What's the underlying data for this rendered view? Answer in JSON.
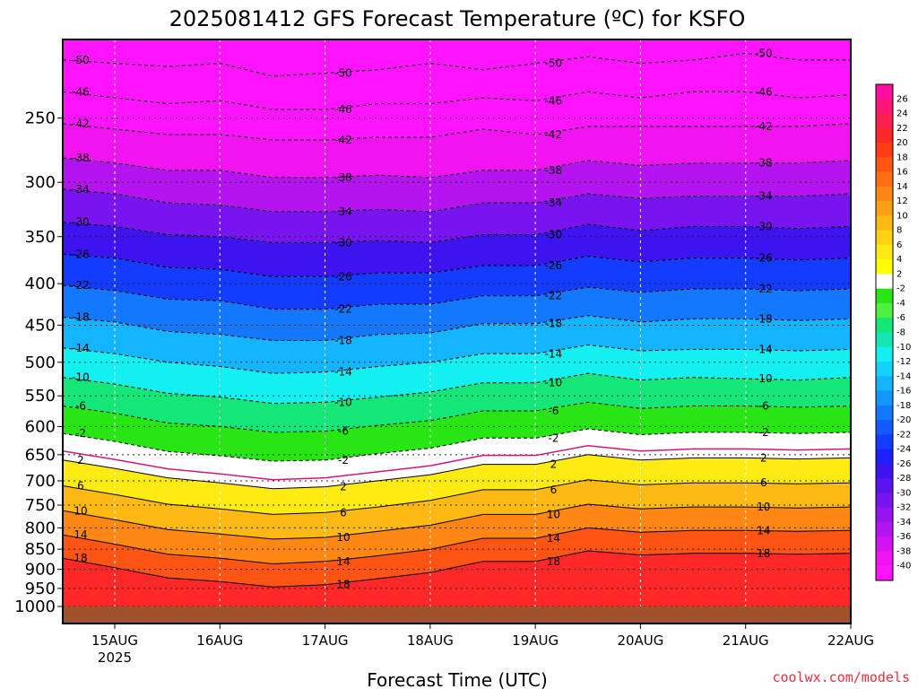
{
  "chart_data": {
    "type": "heatmap",
    "title": "2025081412 GFS Forecast Temperature (ºC) for KSFO",
    "xlabel": "Forecast Time (UTC)",
    "ylabel": "",
    "x_ticks": [
      "15AUG",
      "16AUG",
      "17AUG",
      "18AUG",
      "19AUG",
      "20AUG",
      "21AUG",
      "22AUG"
    ],
    "x_tick_sublabel": "2025",
    "x_range": [
      "2025-08-14T12Z",
      "2025-08-22T00Z"
    ],
    "y_ticks": [
      250,
      300,
      350,
      400,
      450,
      500,
      550,
      600,
      650,
      700,
      750,
      800,
      850,
      900,
      950,
      1000
    ],
    "ylim_hpa": [
      1000,
      200
    ],
    "y_scale": "log-pressure",
    "grid": true,
    "colorbar": {
      "labels": [
        26,
        24,
        22,
        20,
        18,
        16,
        14,
        12,
        10,
        8,
        6,
        4,
        2,
        -2,
        -4,
        -6,
        -8,
        -10,
        -12,
        -14,
        -16,
        -18,
        -20,
        -22,
        -24,
        -26,
        -28,
        -30,
        -32,
        -34,
        -36,
        -38,
        -40
      ],
      "colors": [
        "#ff0ca0",
        "#ff1478",
        "#ff1e50",
        "#ff2828",
        "#ff3c14",
        "#ff5514",
        "#ff6e14",
        "#ff8714",
        "#ffa014",
        "#ffb914",
        "#ffd214",
        "#ffeb14",
        "#ffff00",
        "#ffffff",
        "#28e614",
        "#50f03c",
        "#14e678",
        "#14e6b4",
        "#14f0f0",
        "#14d2ff",
        "#14b4ff",
        "#1496ff",
        "#1478ff",
        "#145aff",
        "#143cff",
        "#1e1eff",
        "#3c14f0",
        "#5a14f0",
        "#7814f0",
        "#9614f0",
        "#b414f0",
        "#d214f0",
        "#f014f0",
        "#ff14ff"
      ]
    },
    "isotherms": [
      {
        "label": "-50",
        "values": [
          -50,
          -50,
          -49,
          -50,
          -50,
          -50,
          -49,
          -50,
          -49,
          -49,
          -50,
          -49,
          -50,
          -50,
          -50,
          -50
        ]
      },
      {
        "label": "-46",
        "values": [
          -46,
          -46,
          -45,
          -46,
          -46,
          -46,
          -46,
          -46,
          -46,
          -46,
          -46,
          -45,
          -46,
          -46,
          -46,
          -46
        ]
      },
      {
        "label": "-42",
        "values": [
          -42,
          -42,
          -42,
          -42,
          -42,
          -42,
          -42,
          -42,
          -42,
          -42,
          -42,
          -42,
          -42,
          -42,
          -42,
          -42
        ]
      },
      {
        "label": "-38",
        "values": [
          -38,
          -38,
          -38,
          -38,
          -38,
          -38,
          -38,
          -38,
          -38,
          -38,
          -38,
          -38,
          -38,
          -38,
          -38,
          -38
        ]
      },
      {
        "label": "-34",
        "values": [
          -34,
          -34,
          -34,
          -34,
          -34,
          -34,
          -34,
          -34,
          -34,
          -34,
          -34,
          -34,
          -34,
          -34,
          -34,
          -34
        ]
      },
      {
        "label": "-30",
        "values": [
          -30,
          -30,
          -30,
          -30,
          -30,
          -30,
          -30,
          -30,
          -30,
          -30,
          -30,
          -30,
          -30,
          -30,
          -30,
          -30
        ]
      },
      {
        "label": "-26",
        "values": [
          -26,
          -26,
          -26,
          -26,
          -26,
          -26,
          -26,
          -26,
          -26,
          -26,
          -26,
          -26,
          -26,
          -26,
          -26,
          -26
        ]
      },
      {
        "label": "-22",
        "values": [
          -22,
          -22,
          -22,
          -22,
          -22,
          -22,
          -22,
          -22,
          -22,
          -22,
          -22,
          -22,
          -22,
          -22,
          -22,
          -22
        ]
      },
      {
        "label": "-18",
        "values": [
          -18,
          -18,
          -18,
          -18,
          -18,
          -18,
          -18,
          -18,
          -18,
          -18,
          -18,
          -18,
          -18,
          -18,
          -18,
          -18
        ]
      },
      {
        "label": "-14",
        "values": [
          -14,
          -14,
          -14,
          -14,
          -14,
          -14,
          -14,
          -14,
          -14,
          -14,
          -14,
          -14,
          -14,
          -14,
          -14,
          -14
        ]
      },
      {
        "label": "-10",
        "values": [
          -10,
          -10,
          -10,
          -10,
          -10,
          -10,
          -10,
          -10,
          -10,
          -10,
          -10,
          -10,
          -10,
          -10,
          -10,
          -10
        ]
      },
      {
        "label": "-6",
        "values": [
          -6,
          -6,
          -6,
          -6,
          -6,
          -6,
          -6,
          -6,
          -6,
          -6,
          -6,
          -6,
          -6,
          -6,
          -6,
          -6
        ]
      },
      {
        "label": "-2",
        "values": [
          -2,
          -2,
          -2,
          -2,
          -2,
          -2,
          -2,
          -2,
          -2,
          -2,
          -2,
          -2,
          -2,
          -2,
          -2,
          -2
        ]
      },
      {
        "label": "2",
        "values": [
          2,
          2,
          2,
          2,
          2,
          2,
          2,
          2,
          2,
          2,
          2,
          2,
          2,
          2,
          2,
          2
        ]
      },
      {
        "label": "6",
        "values": [
          6,
          6,
          6,
          6,
          6,
          6,
          6,
          6,
          6,
          6,
          6,
          6,
          6,
          6,
          6,
          6
        ]
      },
      {
        "label": "10",
        "values": [
          10,
          10,
          10,
          10,
          10,
          10,
          10,
          10,
          10,
          10,
          10,
          10,
          10,
          10,
          10,
          10
        ]
      },
      {
        "label": "14",
        "values": [
          14,
          14,
          14,
          14,
          14,
          14,
          14,
          14,
          14,
          14,
          14,
          14,
          14,
          14,
          14,
          14
        ]
      },
      {
        "label": "18",
        "values": [
          18,
          18,
          18,
          18,
          18,
          18,
          18,
          18,
          18,
          18,
          18,
          18,
          18,
          18,
          18,
          18
        ]
      }
    ],
    "isotherm_pressure_hpa": [
      [
        212,
        214,
        216,
        214,
        222,
        220,
        218,
        214,
        218,
        214,
        210,
        214,
        212,
        208,
        212,
        212
      ],
      [
        232,
        236,
        240,
        238,
        244,
        244,
        240,
        240,
        236,
        238,
        232,
        236,
        232,
        232,
        236,
        234
      ],
      [
        254,
        258,
        262,
        262,
        266,
        266,
        264,
        264,
        258,
        262,
        256,
        256,
        256,
        256,
        256,
        254
      ],
      [
        280,
        284,
        290,
        290,
        296,
        296,
        294,
        296,
        290,
        290,
        282,
        286,
        284,
        284,
        284,
        282
      ],
      [
        306,
        310,
        318,
        320,
        326,
        326,
        324,
        326,
        318,
        318,
        310,
        314,
        312,
        312,
        312,
        310
      ],
      [
        336,
        340,
        348,
        350,
        356,
        356,
        354,
        356,
        348,
        348,
        338,
        344,
        340,
        340,
        342,
        340
      ],
      [
        368,
        372,
        382,
        384,
        392,
        392,
        388,
        388,
        380,
        380,
        370,
        376,
        372,
        372,
        374,
        372
      ],
      [
        402,
        408,
        418,
        420,
        430,
        430,
        424,
        424,
        414,
        414,
        404,
        410,
        406,
        406,
        408,
        406
      ],
      [
        440,
        446,
        458,
        462,
        470,
        470,
        462,
        460,
        448,
        448,
        438,
        446,
        442,
        442,
        444,
        442
      ],
      [
        480,
        488,
        500,
        506,
        516,
        514,
        506,
        500,
        488,
        488,
        476,
        484,
        482,
        482,
        484,
        482
      ],
      [
        522,
        532,
        546,
        552,
        562,
        560,
        552,
        544,
        530,
        530,
        516,
        526,
        522,
        524,
        526,
        522
      ],
      [
        566,
        578,
        594,
        600,
        610,
        608,
        598,
        590,
        574,
        574,
        560,
        570,
        566,
        566,
        568,
        566
      ],
      [
        612,
        626,
        644,
        652,
        662,
        660,
        648,
        638,
        620,
        620,
        604,
        614,
        610,
        610,
        612,
        610
      ],
      [
        660,
        676,
        694,
        704,
        716,
        712,
        700,
        688,
        668,
        668,
        650,
        660,
        656,
        656,
        658,
        656
      ],
      [
        710,
        728,
        748,
        758,
        770,
        766,
        754,
        740,
        718,
        718,
        698,
        708,
        704,
        704,
        706,
        704
      ],
      [
        762,
        782,
        804,
        814,
        826,
        822,
        808,
        794,
        770,
        770,
        748,
        758,
        754,
        754,
        756,
        754
      ],
      [
        816,
        838,
        862,
        872,
        886,
        880,
        866,
        850,
        824,
        824,
        800,
        810,
        806,
        806,
        808,
        806
      ],
      [
        872,
        896,
        922,
        932,
        946,
        940,
        924,
        908,
        880,
        880,
        854,
        864,
        860,
        860,
        862,
        860
      ]
    ],
    "isotherm_style": {
      "dashed_below": 0,
      "zero_line_color": "#d01878"
    }
  },
  "credit": "coolwx.com/models"
}
